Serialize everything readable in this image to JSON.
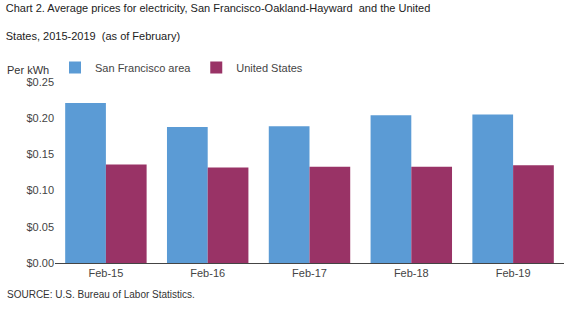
{
  "chart_data": {
    "type": "bar",
    "title": "Chart 2. Average prices for electricity, San Francisco-Oakland-Hayward  and the United",
    "subtitle": "States, 2015-2019  (as of February)",
    "ylabel": "Per kWh",
    "annotations": [
      "SOURCE: U.S. Bureau of Labor Statistics."
    ],
    "categories": [
      "Feb-15",
      "Feb-16",
      "Feb-17",
      "Feb-18",
      "Feb-19"
    ],
    "series": [
      {
        "name": "San Francisco area",
        "color": "#5B9BD5",
        "values": [
          0.221,
          0.188,
          0.189,
          0.204,
          0.205
        ]
      },
      {
        "name": "United States",
        "color": "#993366",
        "values": [
          0.136,
          0.132,
          0.133,
          0.133,
          0.135
        ]
      }
    ],
    "ylim": [
      0,
      0.25
    ],
    "yticks": [
      {
        "value": 0.0,
        "label": "$0.00"
      },
      {
        "value": 0.05,
        "label": "$0.05"
      },
      {
        "value": 0.1,
        "label": "$0.10"
      },
      {
        "value": 0.15,
        "label": "$0.15"
      },
      {
        "value": 0.2,
        "label": "$0.20"
      },
      {
        "value": 0.25,
        "label": "$0.25"
      }
    ],
    "grid": false,
    "legend": "upper left"
  }
}
